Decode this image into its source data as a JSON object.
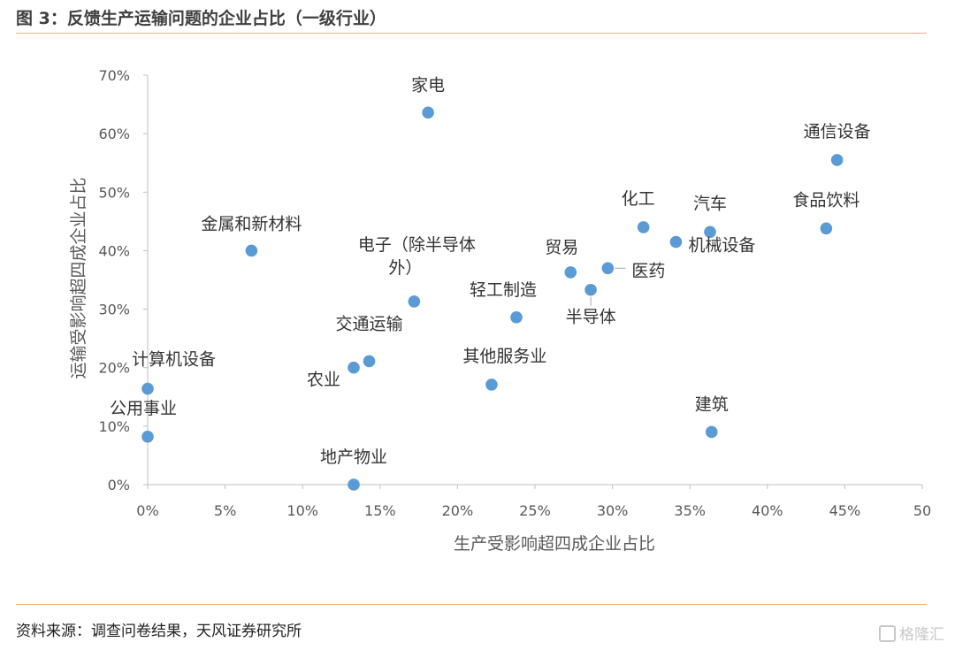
{
  "figure": {
    "title": "图 3：反馈生产运输问题的企业占比（一级行业）",
    "source": "资料来源：调查问卷结果，天风证券研究所",
    "watermark": "格隆汇"
  },
  "colors": {
    "marker": "#5b9bd5",
    "rule": "#f0b26a",
    "axis": "#bfbfbf",
    "text": "#595959"
  },
  "chart_data": {
    "type": "scatter",
    "title": "",
    "xlabel": "生产受影响超四成企业占比",
    "ylabel": "运输受影响超四成企业占比",
    "xlim": [
      0,
      50
    ],
    "ylim": [
      0,
      70
    ],
    "x_ticks": [
      "0%",
      "5%",
      "10%",
      "15%",
      "20%",
      "25%",
      "30%",
      "35%",
      "40%",
      "45%",
      "50"
    ],
    "y_ticks": [
      "0%",
      "10%",
      "20%",
      "30%",
      "40%",
      "50%",
      "60%",
      "70%"
    ],
    "grid": false,
    "points": [
      {
        "label": "家电",
        "x": 18.1,
        "y": 63.6
      },
      {
        "label": "通信设备",
        "x": 44.5,
        "y": 55.5
      },
      {
        "label": "食品饮料",
        "x": 43.8,
        "y": 43.8
      },
      {
        "label": "化工",
        "x": 32.0,
        "y": 44.0
      },
      {
        "label": "汽车",
        "x": 36.3,
        "y": 43.2
      },
      {
        "label": "机械设备",
        "x": 34.1,
        "y": 41.5
      },
      {
        "label": "医药",
        "x": 29.7,
        "y": 37.0
      },
      {
        "label": "贸易",
        "x": 27.3,
        "y": 36.3
      },
      {
        "label": "半导体",
        "x": 28.6,
        "y": 33.3
      },
      {
        "label": "金属和新材料",
        "x": 6.7,
        "y": 40.0
      },
      {
        "label": "电子（除半导体外）",
        "x": 17.2,
        "y": 31.3
      },
      {
        "label": "轻工制造",
        "x": 23.8,
        "y": 28.6
      },
      {
        "label": "交通运输",
        "x": 14.3,
        "y": 21.1
      },
      {
        "label": "农业",
        "x": 13.3,
        "y": 20.0
      },
      {
        "label": "其他服务业",
        "x": 22.2,
        "y": 17.1
      },
      {
        "label": "计算机设备",
        "x": 0.0,
        "y": 16.4
      },
      {
        "label": "公用事业",
        "x": 0.0,
        "y": 8.2
      },
      {
        "label": "建筑",
        "x": 36.4,
        "y": 9.0
      },
      {
        "label": "地产物业",
        "x": 13.3,
        "y": 0.0
      }
    ]
  }
}
